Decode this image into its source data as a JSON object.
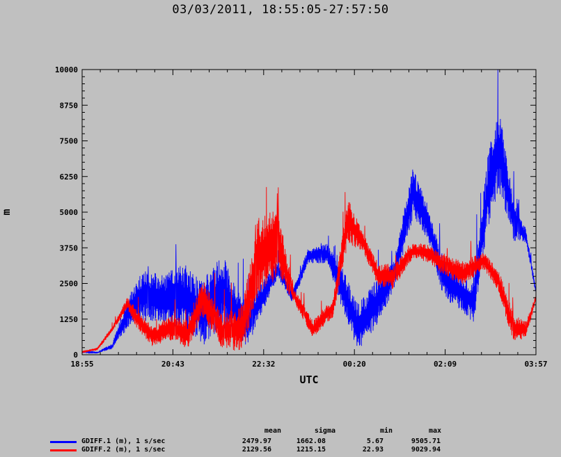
{
  "chart_data": {
    "type": "line",
    "title": "03/03/2011, 18:55:05-27:57:50",
    "xlabel": "UTC",
    "ylabel": "m",
    "x_tick_labels": [
      "18:55",
      "20:43",
      "22:32",
      "00:20",
      "02:09",
      "03:57"
    ],
    "y_tick_labels": [
      "0",
      "1250",
      "2500",
      "3750",
      "5000",
      "6250",
      "7500",
      "8750",
      "10000"
    ],
    "ylim": [
      0,
      10000
    ],
    "xlim_hours": [
      0,
      9.046
    ],
    "grid": false,
    "series": [
      {
        "name": "GDIFF.1 (m), 1 s/sec",
        "color": "#0000ff",
        "approx_envelope_points": [
          {
            "t": 0.0,
            "low": 80,
            "high": 120
          },
          {
            "t": 0.3,
            "low": 50,
            "high": 100
          },
          {
            "t": 0.6,
            "low": 200,
            "high": 400
          },
          {
            "t": 0.9,
            "low": 900,
            "high": 2000
          },
          {
            "t": 1.2,
            "low": 1200,
            "high": 3000
          },
          {
            "t": 1.6,
            "low": 1100,
            "high": 2800
          },
          {
            "t": 2.0,
            "low": 900,
            "high": 3200
          },
          {
            "t": 2.4,
            "low": 300,
            "high": 2600
          },
          {
            "t": 2.8,
            "low": 900,
            "high": 3600
          },
          {
            "t": 3.1,
            "low": 600,
            "high": 2200
          },
          {
            "t": 3.3,
            "low": 200,
            "high": 2000
          },
          {
            "t": 3.6,
            "low": 1500,
            "high": 2600
          },
          {
            "t": 3.9,
            "low": 2700,
            "high": 3300
          },
          {
            "t": 4.2,
            "low": 1800,
            "high": 2300
          },
          {
            "t": 4.5,
            "low": 3200,
            "high": 3700
          },
          {
            "t": 4.9,
            "low": 3200,
            "high": 3900
          },
          {
            "t": 5.2,
            "low": 1500,
            "high": 3000
          },
          {
            "t": 5.5,
            "low": 100,
            "high": 1800
          },
          {
            "t": 5.8,
            "low": 800,
            "high": 2500
          },
          {
            "t": 6.2,
            "low": 2200,
            "high": 3300
          },
          {
            "t": 6.6,
            "low": 4800,
            "high": 6600
          },
          {
            "t": 6.9,
            "low": 4000,
            "high": 5200
          },
          {
            "t": 7.2,
            "low": 2000,
            "high": 3400
          },
          {
            "t": 7.5,
            "low": 1600,
            "high": 2900
          },
          {
            "t": 7.8,
            "low": 1100,
            "high": 2600
          },
          {
            "t": 8.1,
            "low": 4500,
            "high": 7200
          },
          {
            "t": 8.3,
            "low": 5800,
            "high": 8800
          },
          {
            "t": 8.6,
            "low": 4000,
            "high": 5400
          },
          {
            "t": 8.85,
            "low": 3900,
            "high": 4400
          },
          {
            "t": 9.046,
            "low": 2100,
            "high": 2300
          }
        ]
      },
      {
        "name": "GDIFF.2 (m), 1 s/sec",
        "color": "#ff0000",
        "approx_envelope_points": [
          {
            "t": 0.0,
            "low": 80,
            "high": 120
          },
          {
            "t": 0.3,
            "low": 150,
            "high": 250
          },
          {
            "t": 0.6,
            "low": 800,
            "high": 1000
          },
          {
            "t": 0.9,
            "low": 1600,
            "high": 2000
          },
          {
            "t": 1.1,
            "low": 900,
            "high": 1600
          },
          {
            "t": 1.4,
            "low": 300,
            "high": 1000
          },
          {
            "t": 1.8,
            "low": 500,
            "high": 1400
          },
          {
            "t": 2.1,
            "low": 200,
            "high": 1200
          },
          {
            "t": 2.4,
            "low": 1300,
            "high": 2700
          },
          {
            "t": 2.8,
            "low": 200,
            "high": 1400
          },
          {
            "t": 3.2,
            "low": 100,
            "high": 1800
          },
          {
            "t": 3.5,
            "low": 2000,
            "high": 4800
          },
          {
            "t": 3.9,
            "low": 2700,
            "high": 5200
          },
          {
            "t": 4.2,
            "low": 1900,
            "high": 2400
          },
          {
            "t": 4.6,
            "low": 600,
            "high": 1200
          },
          {
            "t": 5.0,
            "low": 1300,
            "high": 2000
          },
          {
            "t": 5.3,
            "low": 3900,
            "high": 5500
          },
          {
            "t": 5.6,
            "low": 3600,
            "high": 4300
          },
          {
            "t": 5.9,
            "low": 2400,
            "high": 3200
          },
          {
            "t": 6.2,
            "low": 2300,
            "high": 3200
          },
          {
            "t": 6.6,
            "low": 3400,
            "high": 3900
          },
          {
            "t": 6.9,
            "low": 3200,
            "high": 3900
          },
          {
            "t": 7.2,
            "low": 2800,
            "high": 3500
          },
          {
            "t": 7.6,
            "low": 2400,
            "high": 3300
          },
          {
            "t": 8.0,
            "low": 3000,
            "high": 3600
          },
          {
            "t": 8.3,
            "low": 2200,
            "high": 3000
          },
          {
            "t": 8.6,
            "low": 400,
            "high": 1400
          },
          {
            "t": 8.85,
            "low": 600,
            "high": 1200
          },
          {
            "t": 9.046,
            "low": 1900,
            "high": 2100
          }
        ]
      }
    ]
  },
  "legend": {
    "headers": [
      "mean",
      "sigma",
      "min",
      "max"
    ],
    "rows": [
      {
        "name": "GDIFF.1 (m), 1 s/sec",
        "color": "#0000ff",
        "mean": "2479.97",
        "sigma": "1662.08",
        "min": "5.67",
        "max": "9505.71"
      },
      {
        "name": "GDIFF.2 (m), 1 s/sec",
        "color": "#ff0000",
        "mean": "2129.56",
        "sigma": "1215.15",
        "min": "22.93",
        "max": "9029.94"
      }
    ]
  }
}
